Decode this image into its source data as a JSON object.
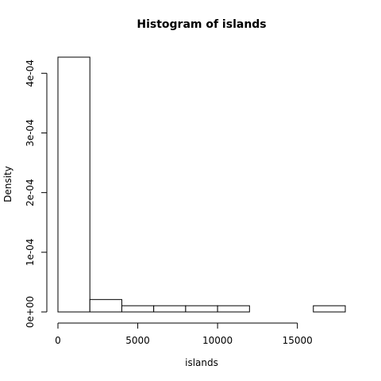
{
  "chart_data": {
    "type": "bar",
    "title": "Histogram of islands",
    "xlabel": "islands",
    "ylabel": "Density",
    "bins": [
      {
        "x0": 0,
        "x1": 2000,
        "density": 0.000427
      },
      {
        "x0": 2000,
        "x1": 4000,
        "density": 2.083e-05
      },
      {
        "x0": 4000,
        "x1": 6000,
        "density": 1.042e-05
      },
      {
        "x0": 6000,
        "x1": 8000,
        "density": 1.042e-05
      },
      {
        "x0": 8000,
        "x1": 10000,
        "density": 1.042e-05
      },
      {
        "x0": 10000,
        "x1": 12000,
        "density": 1.042e-05
      },
      {
        "x0": 12000,
        "x1": 14000,
        "density": 0
      },
      {
        "x0": 14000,
        "x1": 16000,
        "density": 0
      },
      {
        "x0": 16000,
        "x1": 18000,
        "density": 1.042e-05
      }
    ],
    "xlim": [
      0,
      18000
    ],
    "ylim": [
      0,
      0.000427
    ],
    "x_ticks": [
      {
        "value": 0,
        "label": "0"
      },
      {
        "value": 5000,
        "label": "5000"
      },
      {
        "value": 10000,
        "label": "10000"
      },
      {
        "value": 15000,
        "label": "15000"
      }
    ],
    "y_ticks": [
      {
        "value": 0,
        "label": "0e+00"
      },
      {
        "value": 0.0001,
        "label": "1e-04"
      },
      {
        "value": 0.0002,
        "label": "2e-04"
      },
      {
        "value": 0.0003,
        "label": "3e-04"
      },
      {
        "value": 0.0004,
        "label": "4e-04"
      }
    ],
    "grid": false,
    "legend": "none",
    "colors": {
      "bar_fill": "#ffffff",
      "bar_stroke": "#000000",
      "axis": "#000000"
    }
  }
}
